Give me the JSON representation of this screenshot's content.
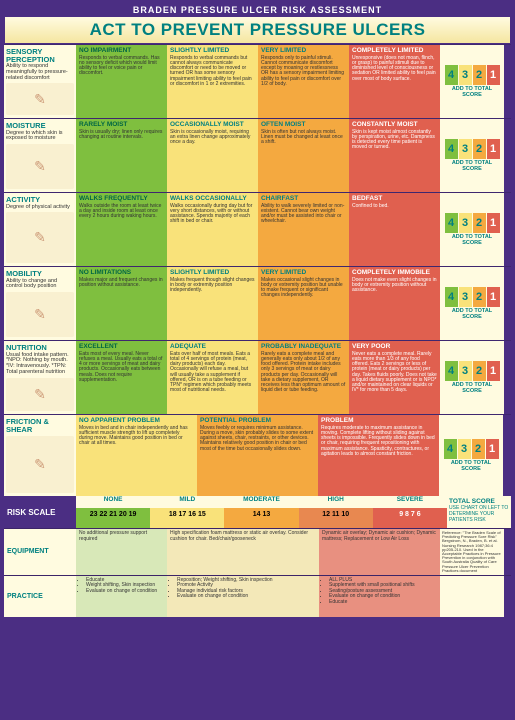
{
  "header": "BRADEN PRESSURE ULCER RISK ASSESSMENT",
  "title": "ACT TO PREVENT PRESSURE ULCERS",
  "score_labels": [
    "4",
    "3",
    "2",
    "1"
  ],
  "add_to_total": "ADD TO TOTAL SCORE",
  "rows": [
    {
      "cat": "SENSORY PERCEPTION",
      "desc": "Ability to respond meaningfully to pressure-related discomfort",
      "cells": [
        {
          "h": "NO IMPAIRMENT",
          "t": "Responds to verbal commands. Has no sensory deficit which would limit ability to feel or voice pain or discomfort."
        },
        {
          "h": "SLIGHTLY LIMITED",
          "t": "Responds to verbal commands but cannot always communicate discomfort or need to be moved or turned OR has some sensory impairment limiting ability to feel pain or discomfort in 1 or 2 extremities."
        },
        {
          "h": "VERY LIMITED",
          "t": "Responds only to painful stimuli. Cannot communicate discomfort except by moaning or restlessness OR has a sensory impairment limiting ability to feel pain or discomfort over 1/2 of body."
        },
        {
          "h": "COMPLETELY LIMITED",
          "t": "Unresponsive (does not moan, flinch, or grasp) to painful stimuli due to diminished level of consciousness or sedation OR limited ability to feel pain over most of body surface."
        }
      ]
    },
    {
      "cat": "MOISTURE",
      "desc": "Degree to which skin is exposed to moisture",
      "cells": [
        {
          "h": "RARELY MOIST",
          "t": "Skin is usually dry; linen only requires changing at routine intervals."
        },
        {
          "h": "OCCASIONALLY MOIST",
          "t": "Skin is occasionally moist, requiring an extra linen change approximately once a day."
        },
        {
          "h": "OFTEN MOIST",
          "t": "Skin is often but not always moist. Linen must be changed at least once a shift."
        },
        {
          "h": "CONSTANTLY MOIST",
          "t": "Skin is kept moist almost constantly by perspiration, urine, etc. Dampness is detected every time patient is moved or turned."
        }
      ]
    },
    {
      "cat": "ACTIVITY",
      "desc": "Degree of physical activity",
      "cells": [
        {
          "h": "WALKS FREQUENTLY",
          "t": "Walks outside the room at least twice a day and inside room at least once every 2 hours during waking hours."
        },
        {
          "h": "WALKS OCCASIONALLY",
          "t": "Walks occasionally during day but for very short distances, with or without assistance. Spends majority of each shift in bed or chair."
        },
        {
          "h": "CHAIRFAST",
          "t": "Ability to walk severely limited or non-existent. Cannot bear own weight and/or must be assisted into chair or wheelchair."
        },
        {
          "h": "BEDFAST",
          "t": "Confined to bed."
        }
      ]
    },
    {
      "cat": "MOBILITY",
      "desc": "Ability to change and control body position",
      "cells": [
        {
          "h": "NO LIMITATIONS",
          "t": "Makes major and frequent changes in position without assistance."
        },
        {
          "h": "SLIGHTLY LIMITED",
          "t": "Makes frequent though slight changes in body or extremity position independently."
        },
        {
          "h": "VERY LIMITED",
          "t": "Makes occasional slight changes in body or extremity position but unable to make frequent or significant changes independently."
        },
        {
          "h": "COMPLETELY IMMOBILE",
          "t": "Does not make even slight changes in body or extremity position without assistance."
        }
      ]
    },
    {
      "cat": "NUTRITION",
      "desc": "Usual food intake pattern. *NPO: Nothing by mouth. *IV: Intravenously. *TPN: Total parenteral nutrition",
      "cells": [
        {
          "h": "EXCELLENT",
          "t": "Eats most of every meal. Never refuses a meal. Usually eats a total of 4 or more servings of meat and dairy products. Occasionally eats between meals. Does not require supplementation."
        },
        {
          "h": "ADEQUATE",
          "t": "Eats over half of most meals. Eats a total of 4 servings of protein (meat, dairy products) each day. Occasionally will refuse a meal, but will usually take a supplement if offered, OR is on a tube feeding or TPN* regimen which probably meets most of nutritional needs."
        },
        {
          "h": "PROBABLY INADEQUATE",
          "t": "Rarely eats a complete meal and generally eats only about 1/2 of any food offered. Protein intake includes only 3 servings of meat or dairy products per day. Occasionally will take a dietary supplement, OR receives less than optimum amount of liquid diet or tube feeding."
        },
        {
          "h": "VERY POOR",
          "t": "Never eats a complete meal. Rarely eats more than 1/3 of any food offered. Eats 2 servings or less of protein (meat or dairy products) per day. Takes fluids poorly. Does not take a liquid dietary supplement or is NPO* and/or maintained on clear liquids or IV* for more than 5 days."
        }
      ]
    }
  ],
  "friction": {
    "cat": "FRICTION & SHEAR",
    "desc": "",
    "cells": [
      {
        "h": "NO APPARENT PROBLEM",
        "t": "Moves in bed and in chair independently and has sufficient muscle strength to lift up completely during move. Maintains good position in bed or chair at all times."
      },
      {
        "h": "POTENTIAL PROBLEM",
        "t": "Moves feebly or requires minimum assistance. During a move, skin probably slides to some extent against sheets, chair, restraints, or other devices. Maintains relatively good position in chair or bed most of the time but occasionally slides down."
      },
      {
        "h": "PROBLEM",
        "t": "Requires moderate to maximum assistance in moving. Complete lifting without sliding against sheets is impossible. Frequently slides down in bed or chair, requiring frequent repositioning with maximum assistance. Spasticity, contractures, or agitation leads to almost constant friction."
      }
    ]
  },
  "friction_scores": [
    "3",
    "2",
    "1"
  ],
  "risk": {
    "label": "RISK SCALE",
    "bands": [
      "NONE",
      "MILD",
      "MODERATE",
      "HIGH",
      "SEVERE"
    ],
    "nums": [
      "23  22  21  20  19",
      "18  17  16  15",
      "14  13",
      "12  11  10",
      "9  8  7  6"
    ],
    "total_title": "TOTAL SCORE",
    "total_text": "USE CHART ON LEFT TO DETERMINE YOUR PATIENTS RISK"
  },
  "equipment": {
    "label": "EQUIPMENT",
    "none": "No additional pressure support required",
    "mild": "High specification foam mattress or static air overlay. Consider cushion for chair. Bed/chair/gooseneck",
    "high": "Dynamic air overlay; Dynamic air cushion; Dynamic mattress; Replacement or Low Air Loss"
  },
  "practice": {
    "label": "PRACTICE",
    "none": [
      "Educate",
      "Weight shifting, Skin inspection",
      "Evaluate on change of condition"
    ],
    "mild": [
      "Reposition; Weight shifting, Skin inspection",
      "Promote Activity",
      "Manage individual risk factors",
      "Evaluate on change of condition"
    ],
    "high": [
      "ALL PLUS",
      "Supplement with small positional shifts",
      "Seating/posture assessment",
      "Evaluate on change of condition",
      "Educate"
    ]
  },
  "reference": "Reference: \"The Braden Scale of Predicting Pressure Sore Risk\" Bergstrom, N., Braden, B. et al. Nursing Research 1987;36:4 pp205-210. Used in the Acceptable Practices in Pressure Prevention in conjunction with South Australia Quality of Care Pressure Ulcer Prevention Practices document"
}
